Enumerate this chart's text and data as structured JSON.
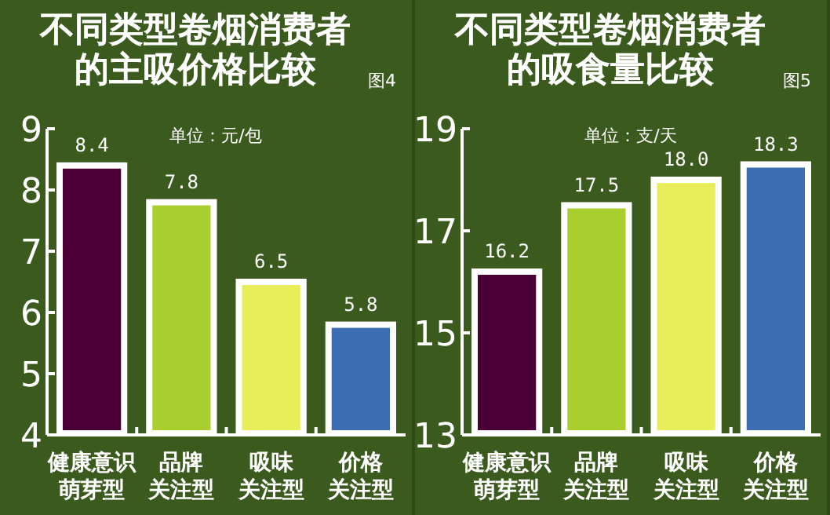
{
  "chart_data": [
    {
      "type": "bar",
      "title": "不同类型卷烟消费者的主吸价格比较",
      "subtitle": "图4",
      "annotations": [
        "单位：元/包"
      ],
      "categories": [
        "健康意识萌芽型",
        "品牌关注型",
        "吸味关注型",
        "价格关注型"
      ],
      "values": [
        8.4,
        7.8,
        6.5,
        5.8
      ],
      "colors": [
        "#4a0036",
        "#a9cf2f",
        "#e8ee5a",
        "#3c6db2"
      ],
      "value_labels": [
        "8.4",
        "7.8",
        "6.5",
        "5.8"
      ],
      "ylim": [
        4,
        9
      ],
      "yticks": [
        4,
        5,
        6,
        7,
        8,
        9
      ],
      "grid": false
    },
    {
      "type": "bar",
      "title": "不同类型卷烟消费者的吸食量比较",
      "subtitle": "图5",
      "annotations": [
        "单位：支/天"
      ],
      "categories": [
        "健康意识萌芽型",
        "品牌关注型",
        "吸味关注型",
        "价格关注型"
      ],
      "values": [
        16.2,
        17.5,
        18.0,
        18.3
      ],
      "colors": [
        "#4a0036",
        "#a9cf2f",
        "#e8ee5a",
        "#3c6db2"
      ],
      "value_labels": [
        "16.2",
        "17.5",
        "18.0",
        "18.3"
      ],
      "ylim": [
        13,
        19
      ],
      "yticks": [
        13,
        15,
        17,
        19
      ],
      "grid": false
    }
  ]
}
